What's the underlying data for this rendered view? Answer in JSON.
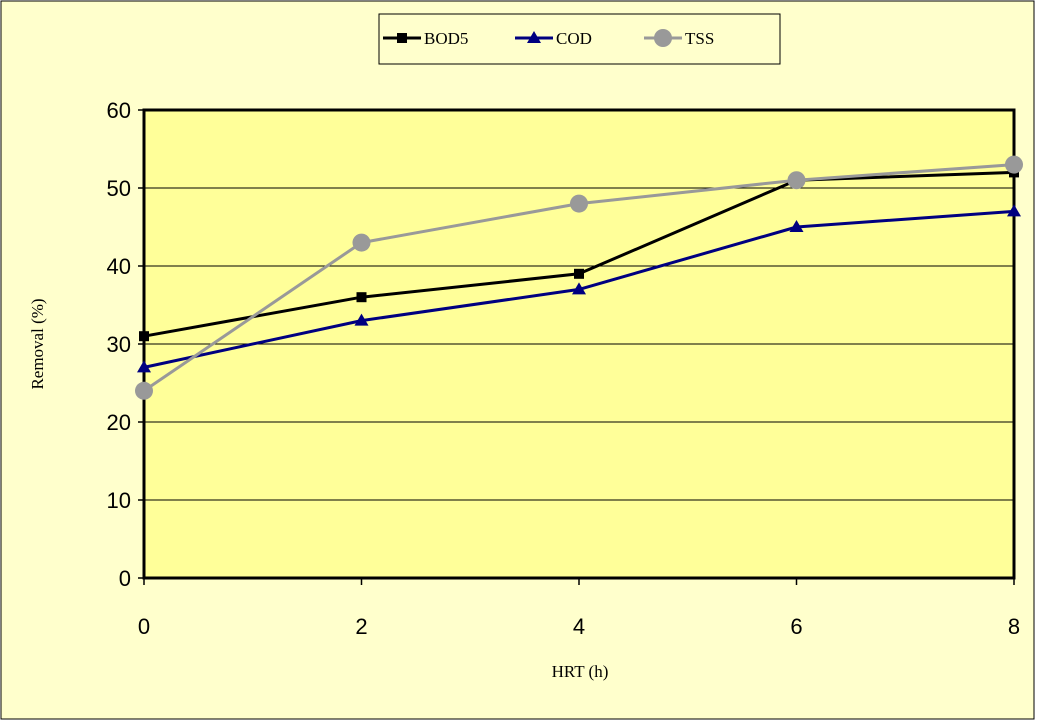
{
  "chart_data": {
    "type": "line",
    "title": "",
    "xlabel": "HRT (h)",
    "ylabel": "Removal (%)",
    "x": [
      0,
      2,
      4,
      6,
      8
    ],
    "x_ticks": [
      "0",
      "2",
      "4",
      "6",
      "8"
    ],
    "y_ticks": [
      "0",
      "10",
      "20",
      "30",
      "40",
      "50",
      "60"
    ],
    "xlim": [
      0,
      8
    ],
    "ylim": [
      0,
      60
    ],
    "grid": "horizontal major gridlines",
    "legend_position": "top-center",
    "plot_background": "#FFFF99",
    "figure_background": "#FFFFCC",
    "series": [
      {
        "name": "BOD5",
        "color": "#000000",
        "marker": "square",
        "values": [
          31,
          36,
          39,
          51,
          52
        ]
      },
      {
        "name": "COD",
        "color": "#000080",
        "marker": "triangle",
        "values": [
          27,
          33,
          37,
          45,
          47
        ]
      },
      {
        "name": "TSS",
        "color": "#999999",
        "marker": "circle",
        "values": [
          24,
          43,
          48,
          51,
          53
        ]
      }
    ]
  }
}
